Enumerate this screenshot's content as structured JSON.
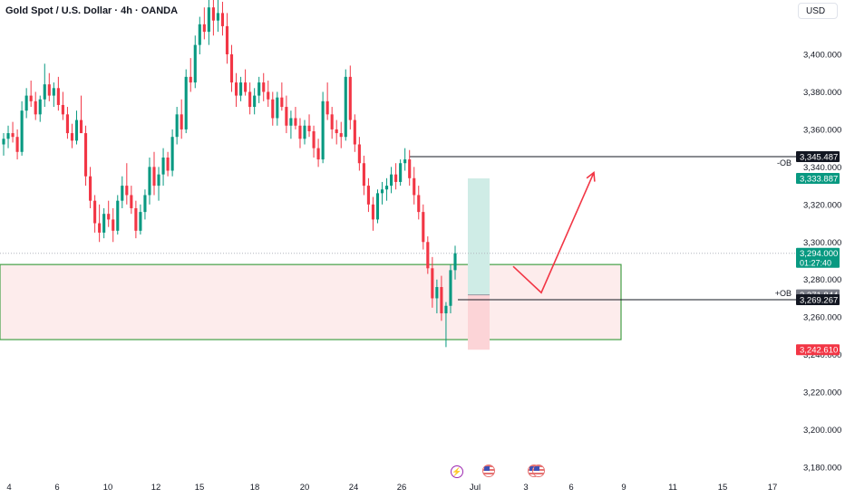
{
  "header": {
    "title": "Gold Spot / U.S. Dollar · 4h · OANDA",
    "currency": "USD"
  },
  "colors": {
    "up": "#089981",
    "down": "#f23645",
    "zone_border": "#43a047",
    "zone_fill": "#fdecec",
    "arrow": "#f23645",
    "tp_fill": "#cfece6",
    "sl_fill": "#fcd4d7"
  },
  "chart_data": {
    "type": "candlestick",
    "title": "Gold Spot / U.S. Dollar · 4h · OANDA",
    "ylim": [
      3175,
      3425
    ],
    "y_ticks": [
      3180,
      3200,
      3220,
      3240,
      3260,
      3280,
      3300,
      3320,
      3340,
      3360,
      3380,
      3400
    ],
    "y_tick_labels": [
      "3,180.000",
      "3,200.000",
      "3,220.000",
      "3,240.000",
      "3,260.000",
      "3,280.000",
      "3,300.000",
      "3,320.000",
      "3,340.000",
      "3,360.000",
      "3,380.000",
      "3,400.000"
    ],
    "x_labels": [
      "4",
      "6",
      "10",
      "12",
      "15",
      "18",
      "20",
      "24",
      "26",
      "Jul",
      "3",
      "6",
      "9",
      "11",
      "15",
      "17"
    ],
    "candles_ohlc": [
      [
        3352,
        3358,
        3346,
        3355
      ],
      [
        3355,
        3362,
        3350,
        3358
      ],
      [
        3358,
        3364,
        3353,
        3356
      ],
      [
        3356,
        3360,
        3344,
        3348
      ],
      [
        3348,
        3375,
        3346,
        3370
      ],
      [
        3370,
        3382,
        3366,
        3378
      ],
      [
        3378,
        3386,
        3372,
        3375
      ],
      [
        3375,
        3380,
        3365,
        3368
      ],
      [
        3368,
        3378,
        3364,
        3376
      ],
      [
        3376,
        3395,
        3372,
        3384
      ],
      [
        3384,
        3390,
        3375,
        3378
      ],
      [
        3378,
        3385,
        3372,
        3382
      ],
      [
        3382,
        3388,
        3370,
        3373
      ],
      [
        3373,
        3380,
        3365,
        3368
      ],
      [
        3368,
        3372,
        3355,
        3358
      ],
      [
        3358,
        3363,
        3350,
        3354
      ],
      [
        3354,
        3370,
        3352,
        3365
      ],
      [
        3365,
        3378,
        3360,
        3358
      ],
      [
        3358,
        3362,
        3330,
        3335
      ],
      [
        3335,
        3340,
        3318,
        3322
      ],
      [
        3322,
        3325,
        3305,
        3310
      ],
      [
        3310,
        3320,
        3300,
        3305
      ],
      [
        3305,
        3318,
        3302,
        3315
      ],
      [
        3315,
        3322,
        3308,
        3312
      ],
      [
        3312,
        3318,
        3300,
        3306
      ],
      [
        3306,
        3325,
        3304,
        3322
      ],
      [
        3322,
        3335,
        3318,
        3330
      ],
      [
        3330,
        3342,
        3320,
        3325
      ],
      [
        3325,
        3330,
        3315,
        3318
      ],
      [
        3318,
        3322,
        3302,
        3306
      ],
      [
        3306,
        3320,
        3304,
        3316
      ],
      [
        3316,
        3328,
        3312,
        3325
      ],
      [
        3325,
        3345,
        3320,
        3340
      ],
      [
        3340,
        3348,
        3325,
        3330
      ],
      [
        3330,
        3340,
        3322,
        3336
      ],
      [
        3336,
        3350,
        3330,
        3345
      ],
      [
        3345,
        3348,
        3335,
        3338
      ],
      [
        3338,
        3360,
        3335,
        3356
      ],
      [
        3356,
        3372,
        3352,
        3368
      ],
      [
        3368,
        3376,
        3355,
        3360
      ],
      [
        3360,
        3392,
        3358,
        3388
      ],
      [
        3388,
        3398,
        3380,
        3385
      ],
      [
        3385,
        3410,
        3382,
        3405
      ],
      [
        3405,
        3420,
        3400,
        3416
      ],
      [
        3416,
        3425,
        3408,
        3412
      ],
      [
        3412,
        3430,
        3405,
        3425
      ],
      [
        3425,
        3430,
        3410,
        3418
      ],
      [
        3418,
        3430,
        3412,
        3422
      ],
      [
        3422,
        3428,
        3410,
        3415
      ],
      [
        3415,
        3422,
        3395,
        3400
      ],
      [
        3400,
        3405,
        3380,
        3385
      ],
      [
        3385,
        3390,
        3372,
        3378
      ],
      [
        3378,
        3388,
        3375,
        3385
      ],
      [
        3385,
        3392,
        3378,
        3380
      ],
      [
        3380,
        3385,
        3368,
        3372
      ],
      [
        3372,
        3382,
        3368,
        3378
      ],
      [
        3378,
        3388,
        3374,
        3385
      ],
      [
        3385,
        3390,
        3375,
        3380
      ],
      [
        3380,
        3386,
        3372,
        3376
      ],
      [
        3376,
        3380,
        3362,
        3366
      ],
      [
        3366,
        3380,
        3362,
        3377
      ],
      [
        3377,
        3385,
        3370,
        3372
      ],
      [
        3372,
        3378,
        3358,
        3362
      ],
      [
        3362,
        3370,
        3355,
        3366
      ],
      [
        3366,
        3372,
        3360,
        3362
      ],
      [
        3362,
        3366,
        3350,
        3355
      ],
      [
        3355,
        3365,
        3352,
        3362
      ],
      [
        3362,
        3368,
        3356,
        3359
      ],
      [
        3359,
        3362,
        3345,
        3350
      ],
      [
        3350,
        3355,
        3340,
        3344
      ],
      [
        3344,
        3380,
        3342,
        3375
      ],
      [
        3375,
        3385,
        3365,
        3368
      ],
      [
        3368,
        3372,
        3355,
        3360
      ],
      [
        3360,
        3365,
        3352,
        3358
      ],
      [
        3358,
        3364,
        3350,
        3356
      ],
      [
        3356,
        3392,
        3354,
        3388
      ],
      [
        3388,
        3394,
        3360,
        3365
      ],
      [
        3365,
        3368,
        3348,
        3352
      ],
      [
        3352,
        3356,
        3338,
        3342
      ],
      [
        3342,
        3346,
        3325,
        3330
      ],
      [
        3330,
        3334,
        3316,
        3320
      ],
      [
        3320,
        3324,
        3306,
        3312
      ],
      [
        3312,
        3328,
        3310,
        3326
      ],
      [
        3326,
        3332,
        3320,
        3328
      ],
      [
        3328,
        3334,
        3322,
        3330
      ],
      [
        3330,
        3340,
        3326,
        3336
      ],
      [
        3336,
        3342,
        3328,
        3332
      ],
      [
        3332,
        3344,
        3330,
        3342
      ],
      [
        3342,
        3350,
        3338,
        3344
      ],
      [
        3344,
        3349,
        3330,
        3334
      ],
      [
        3334,
        3340,
        3320,
        3325
      ],
      [
        3325,
        3330,
        3312,
        3316
      ],
      [
        3316,
        3320,
        3296,
        3300
      ],
      [
        3300,
        3303,
        3283,
        3286
      ],
      [
        3286,
        3292,
        3265,
        3270
      ],
      [
        3270,
        3280,
        3262,
        3276
      ],
      [
        3276,
        3282,
        3258,
        3262
      ],
      [
        3262,
        3268,
        3244,
        3266
      ],
      [
        3266,
        3288,
        3262,
        3285
      ],
      [
        3285,
        3298,
        3280,
        3294
      ]
    ],
    "current_price": 3294.0,
    "countdown": "01:27:40",
    "price_tags": [
      {
        "label": "3,345.487",
        "value": 3345.487,
        "style": "black"
      },
      {
        "label": "3,333.887",
        "value": 3333.887,
        "style": "teal"
      },
      {
        "label": "3,294.000",
        "value": 3294.0,
        "style": "teal_current"
      },
      {
        "label": "3,271.844",
        "value": 3271.844,
        "style": "gray"
      },
      {
        "label": "3,269.267",
        "value": 3269.267,
        "style": "black"
      },
      {
        "label": "3,242.610",
        "value": 3242.61,
        "style": "red"
      }
    ],
    "annotations": {
      "minus_ob": {
        "text": "-OB",
        "price": 3345.487
      },
      "plus_ob": {
        "text": "+OB",
        "price": 3269.267
      },
      "demand_zone": {
        "top": 3288,
        "bottom": 3248
      },
      "position": {
        "entry": 3271.844,
        "take_profit": 3333.887,
        "stop_loss": 3242.61
      },
      "projection": {
        "start": 3287,
        "low": 3273,
        "end": 3337
      }
    }
  }
}
